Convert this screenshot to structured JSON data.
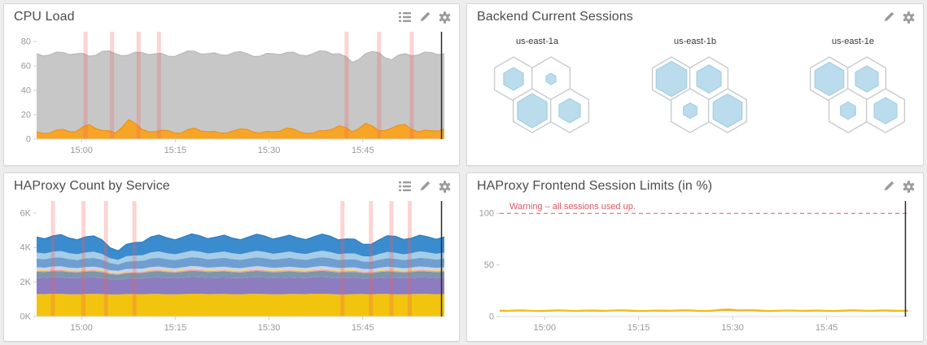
{
  "theme": {
    "page_bg": "#ecedec",
    "panel_bg": "#ffffff",
    "panel_border": "#d6d6d6",
    "title_color": "#4c4c4c",
    "icon_color": "#9b9b9b",
    "axis_label_color": "#999999",
    "event_stripe_color": "#f25f5c",
    "cursor_color": "#2b2b2b"
  },
  "panels": [
    {
      "title": "CPU Load",
      "icons": [
        "list-icon",
        "pencil-icon",
        "gear-icon"
      ]
    },
    {
      "title": "Backend Current Sessions",
      "icons": [
        "pencil-icon",
        "gear-icon"
      ]
    },
    {
      "title": "HAProxy Count by Service",
      "icons": [
        "list-icon",
        "pencil-icon",
        "gear-icon"
      ]
    },
    {
      "title": "HAProxy Frontend Session Limits (in %)",
      "icons": [
        "pencil-icon",
        "gear-icon"
      ]
    }
  ],
  "chart_data": [
    {
      "panel": "CPU Load",
      "type": "area",
      "stacked": false,
      "xlabel": "",
      "ylabel": "",
      "ylim": [
        0,
        88
      ],
      "y_ticks": [
        0,
        20,
        40,
        60,
        80
      ],
      "y_tick_labels": [
        "0",
        "20",
        "40",
        "60",
        "80"
      ],
      "x_ticks": {
        "labels": [
          "15:00",
          "15:15",
          "15:30",
          "15:45"
        ],
        "positions": [
          0.11,
          0.34,
          0.57,
          0.8
        ]
      },
      "series": [
        {
          "name": "gray-area-total-load",
          "color": "#c7c7c7",
          "stroke": "#b6b6b6",
          "jitter": 1.3,
          "values": [
            70,
            69,
            71,
            70,
            68,
            72,
            70,
            69,
            71,
            70,
            68,
            70,
            72,
            70,
            69,
            71,
            70,
            68,
            70,
            71,
            69,
            70,
            72,
            70,
            63,
            70,
            71,
            65,
            70,
            69,
            71,
            70
          ]
        },
        {
          "name": "orange-area-load",
          "color": "#f7a527",
          "stroke": "#ee8f12",
          "jitter": 0.9,
          "values": [
            6,
            5,
            8,
            6,
            12,
            7,
            5,
            16,
            8,
            6,
            7,
            5,
            9,
            6,
            5,
            7,
            8,
            5,
            6,
            9,
            6,
            5,
            7,
            11,
            6,
            13,
            7,
            9,
            12,
            6,
            7,
            8
          ]
        }
      ],
      "event_stripes": [
        0.12,
        0.185,
        0.25,
        0.3,
        0.76,
        0.84,
        0.92
      ],
      "cursor_position": 0.993
    },
    {
      "panel": "Backend Current Sessions",
      "type": "hexmap",
      "hex_fill": "#badced",
      "hex_stroke": "#9fcbe0",
      "cell_stroke": "#c6cbce",
      "groups": [
        {
          "label": "us-east-1a",
          "values": [
            0.5,
            0.18,
            0.82,
            0.55
          ]
        },
        {
          "label": "us-east-1b",
          "values": [
            0.85,
            0.65,
            0.3,
            0.8
          ]
        },
        {
          "label": "us-east-1e",
          "values": [
            0.8,
            0.6,
            0.35,
            0.6
          ]
        }
      ]
    },
    {
      "panel": "HAProxy Count by Service",
      "type": "area",
      "stacked": true,
      "xlabel": "",
      "ylabel": "",
      "ylim": [
        0,
        6700
      ],
      "y_ticks": [
        0,
        2000,
        4000,
        6000
      ],
      "y_tick_labels": [
        "0K",
        "2K",
        "4K",
        "6K"
      ],
      "x_ticks": {
        "labels": [
          "15:00",
          "15:15",
          "15:30",
          "15:45"
        ],
        "positions": [
          0.11,
          0.34,
          0.57,
          0.8
        ]
      },
      "series": [
        {
          "name": "yellow-band",
          "color": "#f2c40e",
          "jitter": 12,
          "values": [
            1300,
            1320,
            1290,
            1310,
            1300,
            1280,
            1300,
            1310,
            1290,
            1300,
            1320,
            1300,
            1290,
            1310,
            1300,
            1290,
            1300,
            1320,
            1300,
            1280,
            1300,
            1310,
            1290,
            1300,
            1310,
            1300
          ]
        },
        {
          "name": "purple-band",
          "color": "#8d7cc0",
          "jitter": 12,
          "values": [
            950,
            960,
            940,
            950,
            930,
            850,
            900,
            950,
            940,
            950,
            960,
            950,
            940,
            950,
            960,
            950,
            940,
            950,
            960,
            950,
            900,
            930,
            950,
            940,
            950,
            950
          ]
        },
        {
          "name": "slate-band",
          "color": "#7d96ad",
          "jitter": 10,
          "values": [
            350,
            355,
            345,
            350,
            340,
            300,
            330,
            350,
            345,
            350,
            355,
            350,
            345,
            350,
            355,
            350,
            345,
            350,
            355,
            350,
            330,
            340,
            350,
            345,
            350,
            350
          ]
        },
        {
          "name": "pink-thin-band",
          "color": "#e8a0b4",
          "jitter": 4,
          "values": [
            60,
            62,
            58,
            60,
            59,
            52,
            56,
            60,
            59,
            60,
            62,
            60,
            58,
            60,
            62,
            60,
            58,
            60,
            62,
            60,
            55,
            58,
            60,
            59,
            60,
            60
          ]
        },
        {
          "name": "gold-thin-band",
          "color": "#f5d051",
          "jitter": 3,
          "values": [
            50,
            51,
            49,
            50,
            49,
            44,
            47,
            50,
            49,
            50,
            51,
            50,
            49,
            50,
            51,
            50,
            49,
            50,
            51,
            50,
            46,
            48,
            50,
            49,
            50,
            50
          ]
        },
        {
          "name": "lightsteel-thin-band",
          "color": "#c7d4ef",
          "jitter": 8,
          "values": [
            150,
            152,
            148,
            150,
            145,
            120,
            138,
            150,
            148,
            150,
            152,
            150,
            148,
            150,
            152,
            150,
            148,
            150,
            152,
            148,
            135,
            142,
            150,
            147,
            150,
            150
          ]
        },
        {
          "name": "medium-blue-band",
          "color": "#6f9fd0",
          "jitter": 14,
          "values": [
            500,
            505,
            495,
            500,
            480,
            380,
            450,
            500,
            495,
            500,
            505,
            500,
            495,
            500,
            505,
            500,
            495,
            500,
            505,
            480,
            430,
            470,
            500,
            490,
            500,
            500
          ]
        },
        {
          "name": "light-blue-band",
          "color": "#a6cde8",
          "jitter": 18,
          "values": [
            350,
            355,
            345,
            350,
            330,
            260,
            320,
            350,
            345,
            350,
            355,
            350,
            345,
            350,
            355,
            350,
            345,
            350,
            355,
            340,
            300,
            330,
            350,
            345,
            350,
            350
          ]
        },
        {
          "name": "top-blue-band",
          "color": "#3a8cce",
          "stroke": "#2b7ab6",
          "jitter": 55,
          "values": [
            900,
            920,
            880,
            900,
            820,
            520,
            750,
            900,
            890,
            910,
            930,
            900,
            880,
            900,
            920,
            900,
            890,
            900,
            920,
            850,
            700,
            820,
            950,
            880,
            900,
            910
          ]
        }
      ],
      "event_stripes": [
        0.04,
        0.115,
        0.17,
        0.24,
        0.75,
        0.82,
        0.87,
        0.915
      ],
      "cursor_position": 0.993
    },
    {
      "panel": "HAProxy Frontend Session Limits (in %)",
      "type": "line",
      "xlabel": "",
      "ylabel": "",
      "ylim": [
        0,
        112
      ],
      "y_ticks": [
        0,
        50,
        100
      ],
      "y_tick_labels": [
        "0",
        "50",
        "100"
      ],
      "x_ticks": {
        "labels": [
          "15:00",
          "15:15",
          "15:30",
          "15:45"
        ],
        "positions": [
          0.11,
          0.34,
          0.57,
          0.8
        ]
      },
      "threshold": {
        "value": 100,
        "label": "Warning – all sessions used up.",
        "color": "#e0565e",
        "style": "dashed"
      },
      "series": [
        {
          "name": "orange-line",
          "color": "#eda325",
          "jitter": 0.2,
          "values": [
            5.4,
            5.5,
            5.3,
            5.4,
            5.5,
            5.3,
            5.4,
            5.6,
            5.4,
            5.2,
            5.4,
            5.6,
            5.3,
            5.4,
            6.2,
            5.7,
            5.4,
            5.3,
            5.5,
            5.4,
            5.2,
            5.4,
            5.5,
            5.4,
            5.4,
            5.4
          ]
        },
        {
          "name": "yellow-line",
          "color": "#f0c419",
          "jitter": 0.25,
          "values": [
            6,
            6.2,
            5.8,
            6,
            6.1,
            5.9,
            6,
            6.2,
            6,
            5.8,
            6,
            6.3,
            5.9,
            6,
            7.2,
            6.4,
            6,
            5.9,
            6.1,
            6,
            5.8,
            6,
            6.2,
            6,
            6.1,
            6
          ]
        }
      ],
      "cursor_position": 0.993
    }
  ]
}
